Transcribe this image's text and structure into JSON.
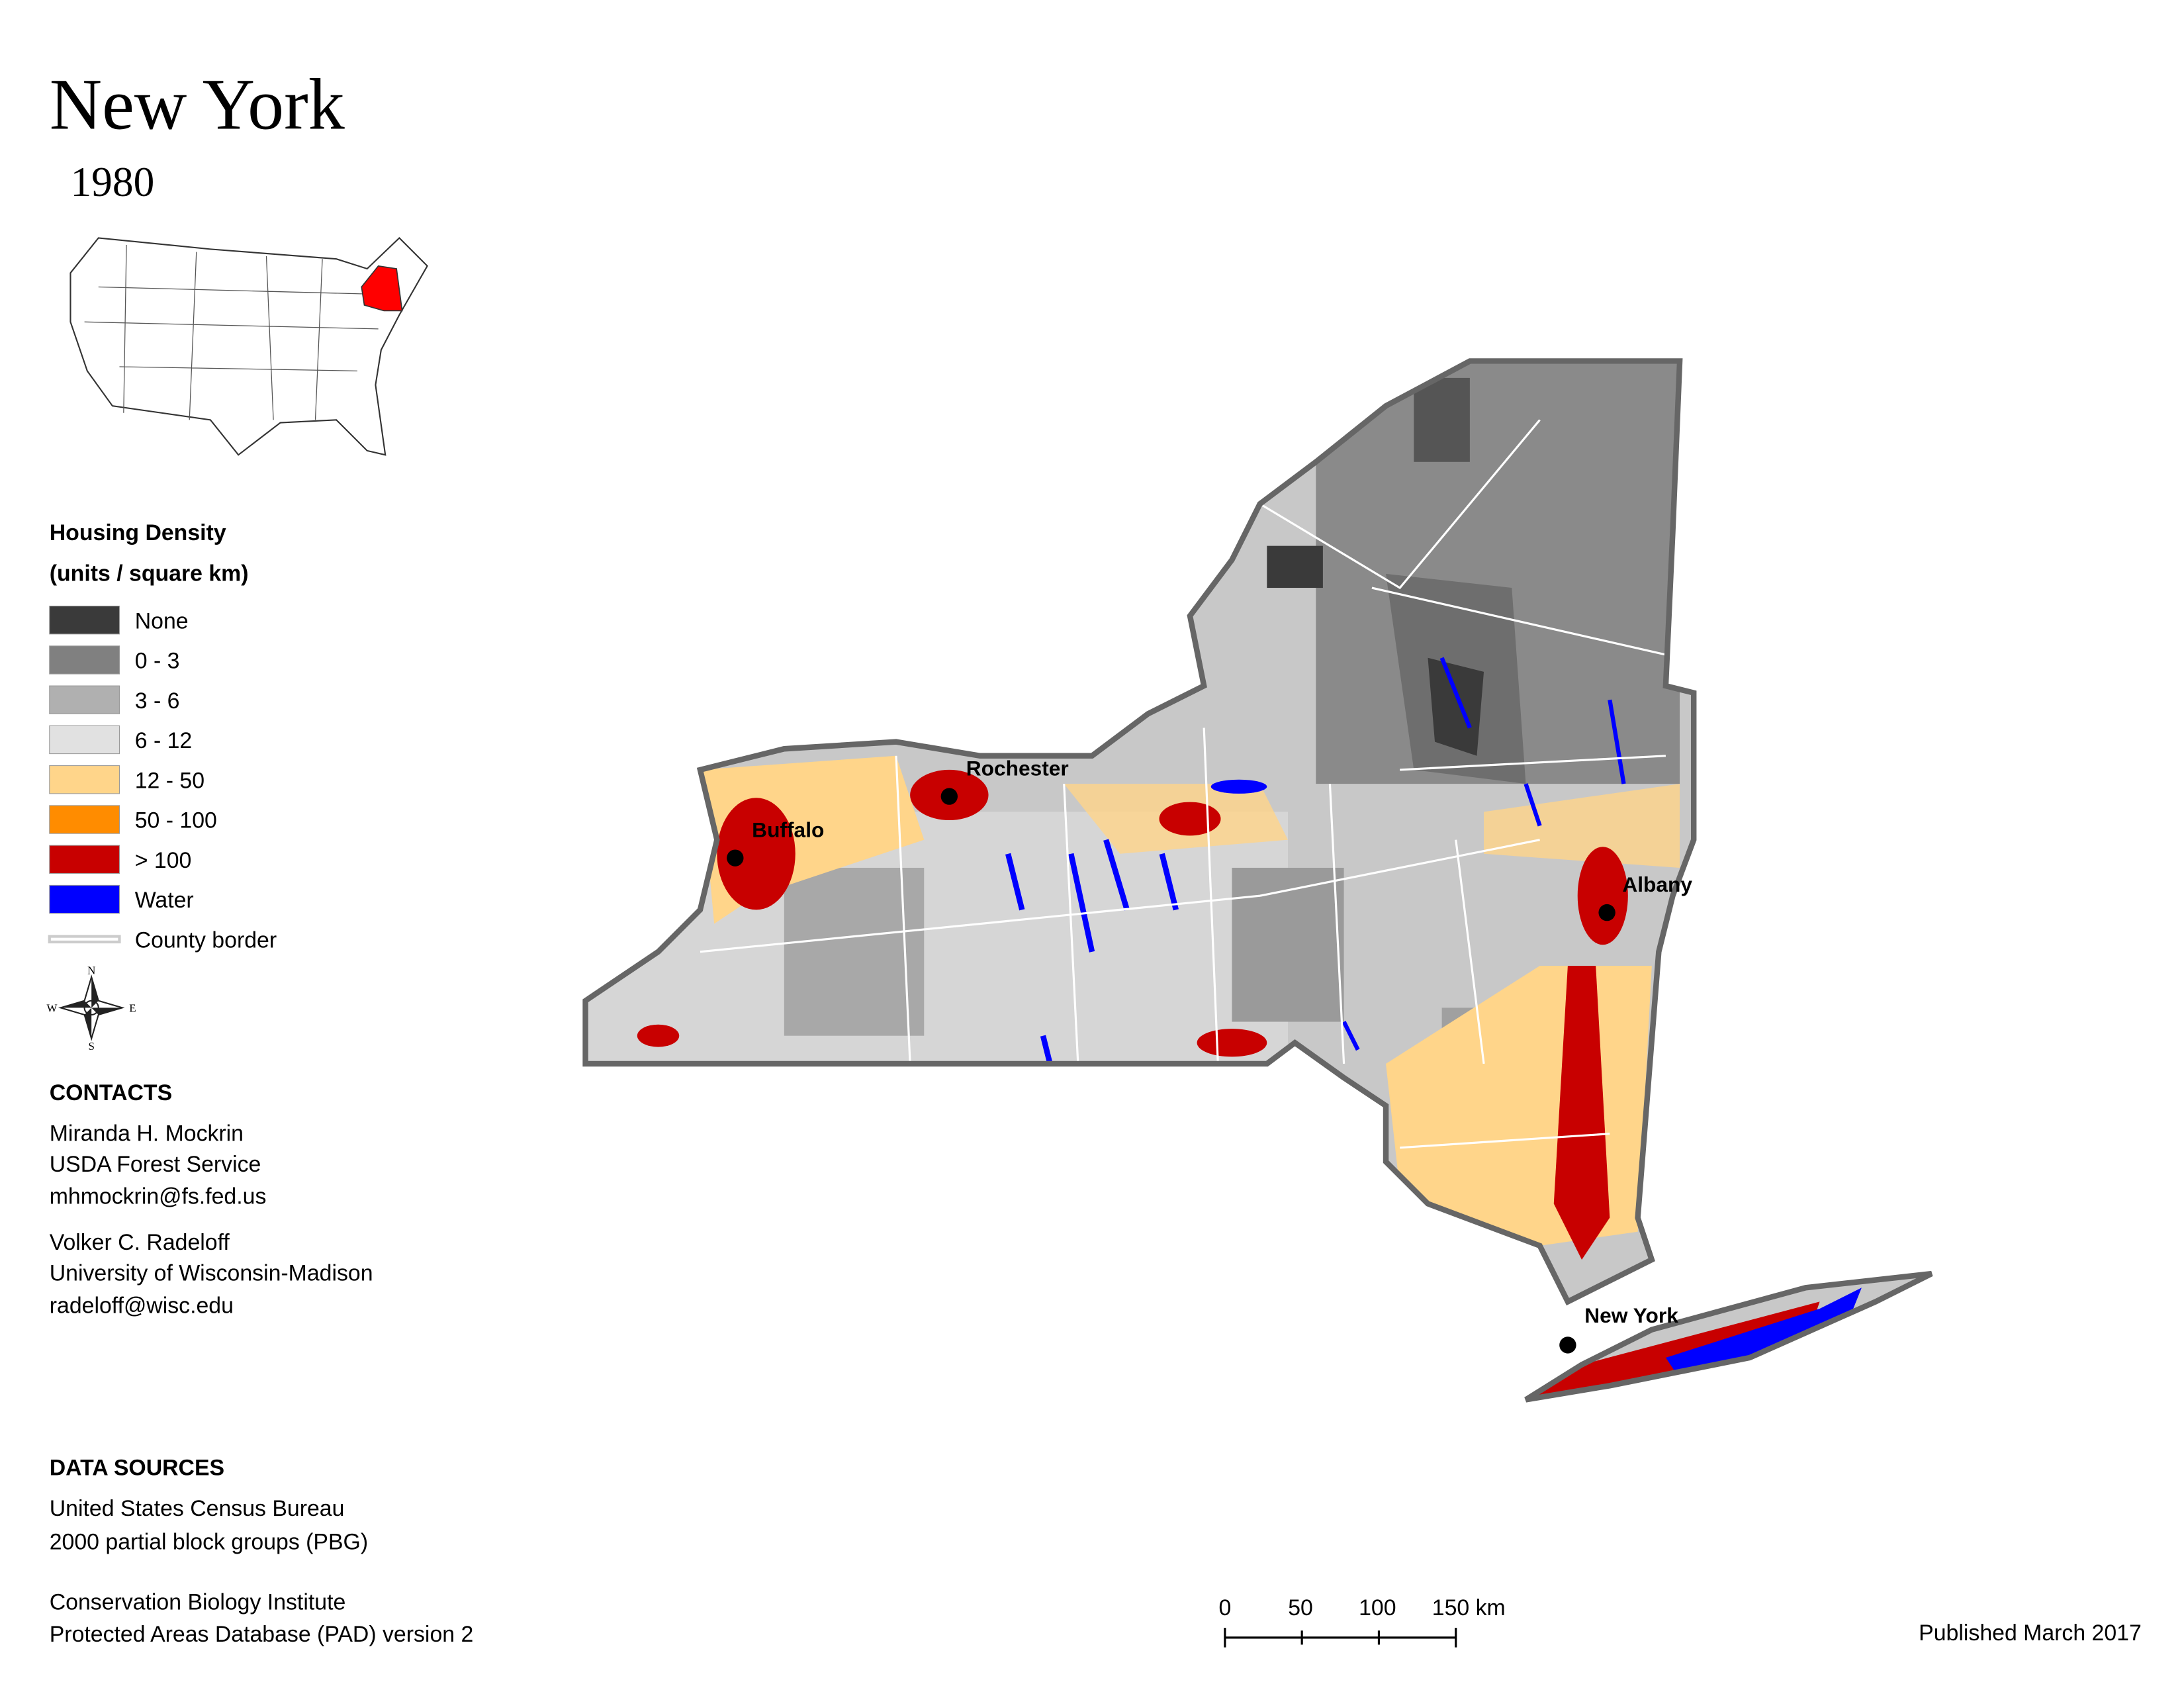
{
  "header": {
    "title": "New York",
    "year": "1980"
  },
  "legend": {
    "title": "Housing Density",
    "subtitle": "(units / square km)",
    "items": [
      {
        "label": "None",
        "color": "#3a3a3a"
      },
      {
        "label": "0 - 3",
        "color": "#808080"
      },
      {
        "label": "3 - 6",
        "color": "#b0b0b0"
      },
      {
        "label": "6 - 12",
        "color": "#e1e1e1"
      },
      {
        "label": "12 - 50",
        "color": "#ffd58a"
      },
      {
        "label": "50 - 100",
        "color": "#ff8c00"
      },
      {
        "label": "> 100",
        "color": "#c80000"
      },
      {
        "label": "Water",
        "color": "#0000ff"
      },
      {
        "label": "County border",
        "color": "#cccccc"
      }
    ]
  },
  "compass": {
    "north": "N",
    "east": "E",
    "south": "S",
    "west": "W"
  },
  "cities": {
    "rochester": "Rochester",
    "buffalo": "Buffalo",
    "albany": "Albany",
    "new_york": "New York"
  },
  "contacts": {
    "heading": "CONTACTS",
    "people": [
      [
        "Miranda H. Mockrin",
        "USDA Forest Service",
        "mhmockrin@fs.fed.us"
      ],
      [
        "Volker C. Radeloff",
        "University of Wisconsin-Madison",
        "radeloff@wisc.edu"
      ]
    ]
  },
  "sources": {
    "heading": "DATA SOURCES",
    "groups": [
      [
        "United States Census Bureau",
        "2000 partial block groups (PBG)"
      ],
      [
        "Conservation Biology Institute",
        "Protected Areas Database (PAD) version 2"
      ]
    ]
  },
  "scale_bar": {
    "labels": [
      "0",
      "50",
      "100",
      "150 km"
    ]
  },
  "footer": "Published March 2017"
}
